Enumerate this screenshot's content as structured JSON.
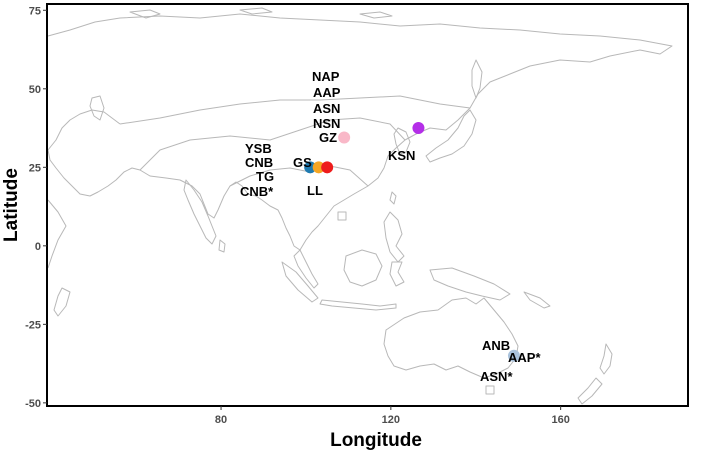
{
  "map": {
    "xlabel": "Longitude",
    "ylabel": "Latitude",
    "x_ticks": [
      80,
      120,
      160
    ],
    "y_ticks": [
      75,
      50,
      25,
      0,
      -25,
      -50
    ],
    "x_range": [
      39,
      190
    ],
    "y_range": [
      -51,
      77
    ],
    "frame": true,
    "grid": false
  },
  "sites": [
    {
      "id": "yunnan-teal",
      "lon": 101,
      "lat": 25,
      "color": "#1f7ab0"
    },
    {
      "id": "guangxi-orange",
      "lon": 103,
      "lat": 25,
      "color": "#f5a623"
    },
    {
      "id": "red-site",
      "lon": 105,
      "lat": 25,
      "color": "#ee1c1c"
    },
    {
      "id": "pink-site",
      "lon": 109,
      "lat": 34.5,
      "color": "#f9b8c8"
    },
    {
      "id": "korea-purple",
      "lon": 126.5,
      "lat": 37.5,
      "color": "#b42ee8"
    },
    {
      "id": "australia-blue",
      "lon": 149,
      "lat": -35,
      "color": "#a9c2dc"
    }
  ],
  "labels": {
    "nap": "NAP",
    "aap": "AAP",
    "asn": "ASN",
    "nsn": "NSN",
    "gz": "GZ",
    "ysb": "YSB",
    "cnb": "CNB",
    "tg": "TG",
    "cnb_star": "CNB*",
    "gs": "GS",
    "ll": "LL",
    "ksn": "KSN",
    "anb": "ANB",
    "aap_star": "AAP*",
    "asn_star": "ASN*"
  }
}
